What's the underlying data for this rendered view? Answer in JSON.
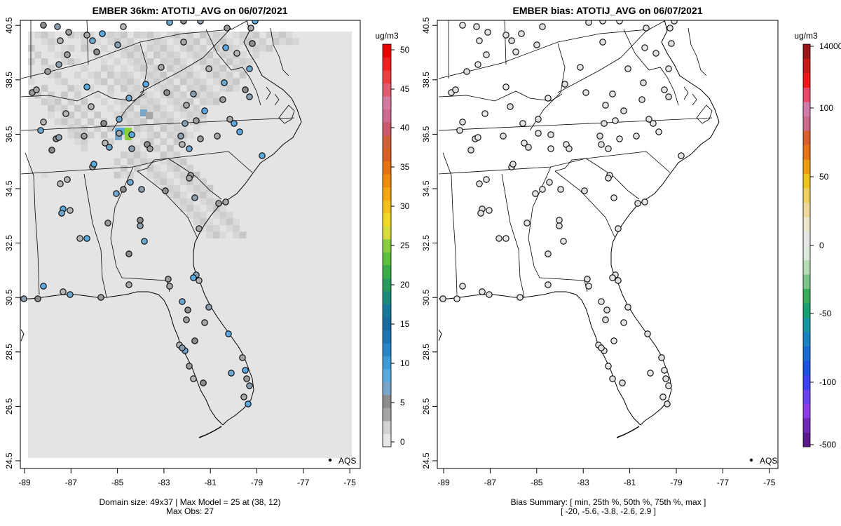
{
  "left_panel": {
    "title": "EMBER 36km: ATOTIJ_AVG on 06/07/2021",
    "footer_line1": "Domain size: 49x37 | Max Model = 25 at (38, 12)",
    "footer_line2": "Max Obs: 27",
    "legend_label": "AQS",
    "colorbar_unit": "ug/m3",
    "colorbar_ticks": [
      "0",
      "5",
      "10",
      "15",
      "20",
      "25",
      "30",
      "35",
      "40",
      "45",
      "50"
    ],
    "colorbar_colors": [
      "#e6e6e6",
      "#d2d2d2",
      "#a6a6a6",
      "#8c8c8c",
      "#7aa6c8",
      "#5aaae0",
      "#3d9ad6",
      "#2a86c4",
      "#1f74b4",
      "#1a6aa0",
      "#17789a",
      "#1a8a7a",
      "#2a9a5e",
      "#3aac48",
      "#5cbe3c",
      "#8ccc40",
      "#d6dc3c",
      "#f0d828",
      "#f2c01a",
      "#f2a612",
      "#ee8c10",
      "#e47214",
      "#d86026",
      "#d0603c",
      "#c85a70",
      "#cc6a90",
      "#d27aa0",
      "#e05a70",
      "#ea4040",
      "#f02020",
      "#f00000"
    ]
  },
  "right_panel": {
    "title": "EMBER bias: ATOTIJ_AVG on 06/07/2021",
    "footer_line1": "Bias Summary: [ min, 25th %, 50th %, 75th %, max ]",
    "footer_line2": "[ -20,   -5.6,   -3.8,   -2.6,   2.9 ]",
    "legend_label": "AQS",
    "colorbar_unit": "ug/m3",
    "colorbar_ticks": [
      "-500",
      "-100",
      "-50",
      "0",
      "50",
      "100",
      "14000"
    ],
    "colorbar_colors": [
      "#5a1a8c",
      "#6e2ab4",
      "#8a3ce6",
      "#6a40f0",
      "#3c40f0",
      "#1a50e0",
      "#1a6ad0",
      "#1a82c0",
      "#1a96a0",
      "#1aa070",
      "#3aac5a",
      "#7cc48a",
      "#b6dcb6",
      "#dce8dc",
      "#e6e6e6",
      "#ece6cc",
      "#eed89a",
      "#eed060",
      "#eec41c",
      "#ec9c10",
      "#e47418",
      "#d8602c",
      "#cc6a8c",
      "#d27aa8",
      "#ea4868",
      "#f01818",
      "#c81818",
      "#9c1818"
    ]
  },
  "map_axes": {
    "x_ticks": [
      "-89",
      "-87",
      "-85",
      "-83",
      "-81",
      "-79",
      "-77",
      "-75"
    ],
    "y_ticks": [
      "24.5",
      "26.5",
      "28.5",
      "30.5",
      "32.5",
      "34.5",
      "36.5",
      "38.5",
      "40.5"
    ]
  }
}
